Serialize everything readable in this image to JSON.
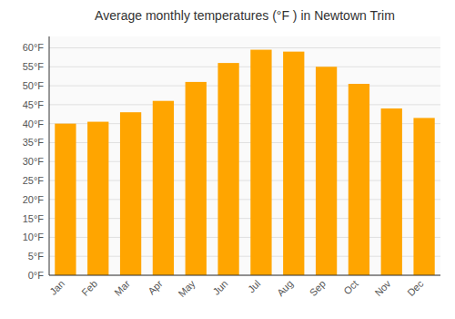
{
  "chart_data": {
    "type": "bar",
    "title": "Average monthly temperatures (°F ) in Newtown Trim",
    "categories": [
      "Jan",
      "Feb",
      "Mar",
      "Apr",
      "May",
      "Jun",
      "Jul",
      "Aug",
      "Sep",
      "Oct",
      "Nov",
      "Dec"
    ],
    "values": [
      40,
      40.5,
      43,
      46,
      51,
      56,
      59.5,
      59,
      55,
      50.5,
      44,
      41.5
    ],
    "color": "#FFA500",
    "ylim": [
      0,
      63
    ],
    "yticks": [
      {
        "value": 0,
        "label": "0°F"
      },
      {
        "value": 5,
        "label": "5°F"
      },
      {
        "value": 10,
        "label": "10°F"
      },
      {
        "value": 15,
        "label": "15°F"
      },
      {
        "value": 20,
        "label": "20°F"
      },
      {
        "value": 25,
        "label": "25°F"
      },
      {
        "value": 30,
        "label": "30°F"
      },
      {
        "value": 35,
        "label": "35°F"
      },
      {
        "value": 40,
        "label": "40°F"
      },
      {
        "value": 45,
        "label": "45°F"
      },
      {
        "value": 50,
        "label": "50°F"
      },
      {
        "value": 55,
        "label": "55°F"
      },
      {
        "value": 60,
        "label": "60°F"
      }
    ],
    "grid": true
  }
}
